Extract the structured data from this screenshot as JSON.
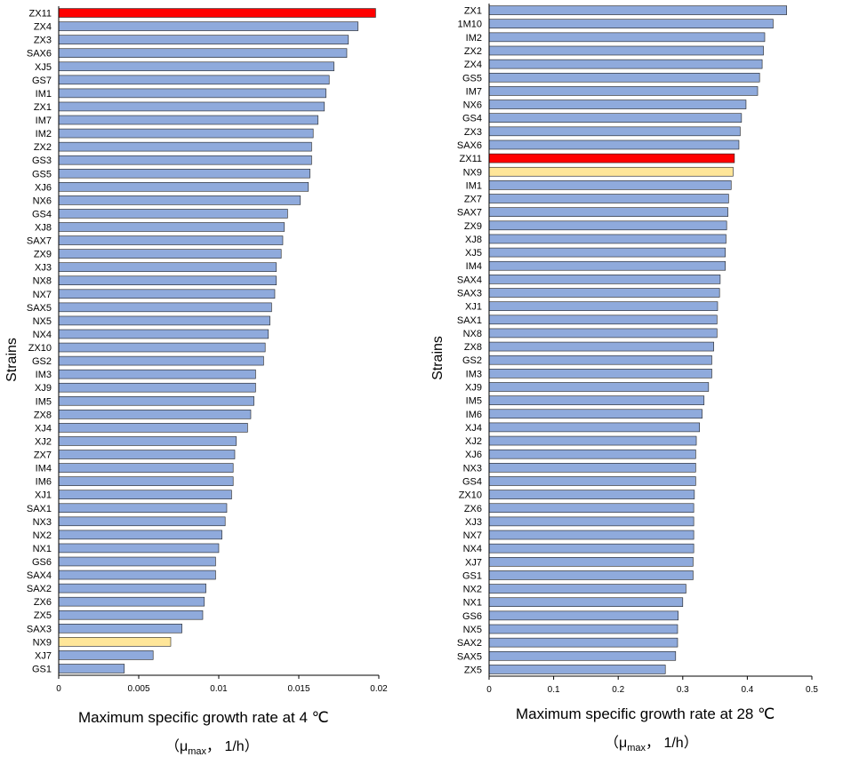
{
  "colors": {
    "default_bar": "#8faadc",
    "highlight_red": "#ff0000",
    "highlight_yellow": "#ffe699",
    "bar_stroke": "#1f1f1f"
  },
  "chart_data": [
    {
      "type": "bar",
      "orientation": "horizontal",
      "ylabel": "Strains",
      "xlabel": "Maximum  specific growth rate at 4 ℃",
      "unit_prefix": "（μ",
      "unit_sub": "max",
      "unit_suffix": "， 1/h）",
      "xlim": [
        0,
        0.02
      ],
      "xticks": [
        "0",
        "0.005",
        "0.01",
        "0.015",
        "0.02"
      ],
      "highlight_red": [
        "ZX11"
      ],
      "highlight_yellow": [
        "NX9"
      ],
      "categories": [
        "ZX11",
        "ZX4",
        "ZX3",
        "SAX6",
        "XJ5",
        "GS7",
        "IM1",
        "ZX1",
        "IM7",
        "IM2",
        "ZX2",
        "GS3",
        "GS5",
        "XJ6",
        "NX6",
        "GS4",
        "XJ8",
        "SAX7",
        "ZX9",
        "XJ3",
        "NX8",
        "NX7",
        "SAX5",
        "NX5",
        "NX4",
        "ZX10",
        "GS2",
        "IM3",
        "XJ9",
        "IM5",
        "ZX8",
        "XJ4",
        "XJ2",
        "ZX7",
        "IM4",
        "IM6",
        "XJ1",
        "SAX1",
        "NX3",
        "NX2",
        "NX1",
        "GS6",
        "SAX4",
        "SAX2",
        "ZX6",
        "ZX5",
        "SAX3",
        "NX9",
        "XJ7",
        "GS1"
      ],
      "values": [
        0.0198,
        0.0187,
        0.0181,
        0.018,
        0.0172,
        0.0169,
        0.0167,
        0.0166,
        0.0162,
        0.0159,
        0.0158,
        0.0158,
        0.0157,
        0.0156,
        0.0151,
        0.0143,
        0.0141,
        0.014,
        0.0139,
        0.0136,
        0.0136,
        0.0135,
        0.0133,
        0.0132,
        0.0131,
        0.0129,
        0.0128,
        0.0123,
        0.0123,
        0.0122,
        0.012,
        0.0118,
        0.0111,
        0.011,
        0.0109,
        0.0109,
        0.0108,
        0.0105,
        0.0104,
        0.0102,
        0.01,
        0.0098,
        0.0098,
        0.0092,
        0.0091,
        0.009,
        0.0077,
        0.007,
        0.0059,
        0.0041
      ]
    },
    {
      "type": "bar",
      "orientation": "horizontal",
      "ylabel": "Strains",
      "xlabel": "Maximum  specific growth rate at 28 ℃",
      "unit_prefix": "（μ",
      "unit_sub": "max",
      "unit_suffix": "， 1/h）",
      "xlim": [
        0,
        0.5
      ],
      "xticks": [
        "0",
        "0.1",
        "0.2",
        "0.3",
        "0.4",
        "0.5"
      ],
      "highlight_red": [
        "ZX11"
      ],
      "highlight_yellow": [
        "NX9"
      ],
      "categories": [
        "ZX1",
        "1M10",
        "IM2",
        "ZX2",
        "ZX4",
        "GS5",
        "IM7",
        "NX6",
        "GS4",
        "ZX3",
        "SAX6",
        "ZX11",
        "NX9",
        "IM1",
        "ZX7",
        "SAX7",
        "ZX9",
        "XJ8",
        "XJ5",
        "IM4",
        "SAX4",
        "SAX3",
        "XJ1",
        "SAX1",
        "NX8",
        "ZX8",
        "GS2",
        "IM3",
        "XJ9",
        "IM5",
        "IM6",
        "XJ4",
        "XJ2",
        "XJ6",
        "NX3",
        "GS4",
        "ZX10",
        "ZX6",
        "XJ3",
        "NX7",
        "NX4",
        "XJ7",
        "GS1",
        "NX2",
        "NX1",
        "GS6",
        "NX5",
        "SAX2",
        "SAX5",
        "ZX5"
      ],
      "values": [
        0.461,
        0.44,
        0.427,
        0.425,
        0.423,
        0.419,
        0.416,
        0.398,
        0.391,
        0.389,
        0.387,
        0.38,
        0.378,
        0.375,
        0.371,
        0.37,
        0.368,
        0.367,
        0.366,
        0.366,
        0.358,
        0.357,
        0.354,
        0.353,
        0.353,
        0.348,
        0.345,
        0.345,
        0.34,
        0.333,
        0.33,
        0.326,
        0.321,
        0.32,
        0.32,
        0.32,
        0.318,
        0.317,
        0.317,
        0.317,
        0.317,
        0.316,
        0.316,
        0.305,
        0.3,
        0.293,
        0.292,
        0.292,
        0.289,
        0.273
      ]
    }
  ]
}
